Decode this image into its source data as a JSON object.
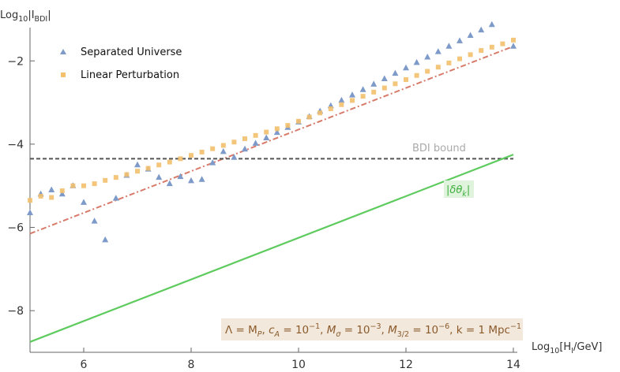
{
  "chart_data": {
    "type": "scatter",
    "xlabel": "Log10[HI/GeV]",
    "ylabel": "Log10|IBDI|",
    "xlim": [
      5,
      14
    ],
    "ylim": [
      -9,
      -1.2
    ],
    "x_ticks": [
      "6",
      "8",
      "10",
      "12",
      "14"
    ],
    "y_ticks": [
      "-2",
      "-4",
      "-6",
      "-8"
    ],
    "grid": false,
    "legend_position": "top-left",
    "series": [
      {
        "name": "Separated Universe",
        "marker": "triangle",
        "color": "#7d9ac9",
        "points": [
          [
            5.0,
            -5.65
          ],
          [
            5.2,
            -5.2
          ],
          [
            5.4,
            -5.1
          ],
          [
            5.6,
            -5.2
          ],
          [
            5.8,
            -5.0
          ],
          [
            6.0,
            -5.4
          ],
          [
            6.2,
            -5.85
          ],
          [
            6.4,
            -6.3
          ],
          [
            6.6,
            -5.3
          ],
          [
            6.8,
            -4.75
          ],
          [
            7.0,
            -4.5
          ],
          [
            7.2,
            -4.6
          ],
          [
            7.4,
            -4.8
          ],
          [
            7.6,
            -4.95
          ],
          [
            7.8,
            -4.78
          ],
          [
            8.0,
            -4.88
          ],
          [
            8.2,
            -4.85
          ],
          [
            8.4,
            -4.45
          ],
          [
            8.6,
            -4.18
          ],
          [
            8.8,
            -4.32
          ],
          [
            9.0,
            -4.12
          ],
          [
            9.2,
            -3.98
          ],
          [
            9.4,
            -3.85
          ],
          [
            9.6,
            -3.72
          ],
          [
            9.8,
            -3.6
          ],
          [
            10.0,
            -3.47
          ],
          [
            10.2,
            -3.34
          ],
          [
            10.4,
            -3.21
          ],
          [
            10.6,
            -3.08
          ],
          [
            10.8,
            -2.95
          ],
          [
            11.0,
            -2.82
          ],
          [
            11.2,
            -2.69
          ],
          [
            11.4,
            -2.56
          ],
          [
            11.6,
            -2.43
          ],
          [
            11.8,
            -2.3
          ],
          [
            12.0,
            -2.17
          ],
          [
            12.2,
            -2.04
          ],
          [
            12.4,
            -1.91
          ],
          [
            12.6,
            -1.78
          ],
          [
            12.8,
            -1.65
          ],
          [
            13.0,
            -1.52
          ],
          [
            13.2,
            -1.39
          ],
          [
            13.4,
            -1.26
          ],
          [
            13.6,
            -1.13
          ],
          [
            13.8,
            -1.0
          ],
          [
            14.0,
            -1.65
          ]
        ]
      },
      {
        "name": "Linear Perturbation",
        "marker": "square",
        "color": "#f3c06e",
        "points": [
          [
            5.0,
            -5.35
          ],
          [
            5.2,
            -5.25
          ],
          [
            5.4,
            -5.28
          ],
          [
            5.6,
            -5.12
          ],
          [
            5.8,
            -5.0
          ],
          [
            6.0,
            -5.0
          ],
          [
            6.2,
            -4.95
          ],
          [
            6.4,
            -4.87
          ],
          [
            6.6,
            -4.8
          ],
          [
            6.8,
            -4.73
          ],
          [
            7.0,
            -4.65
          ],
          [
            7.2,
            -4.58
          ],
          [
            7.4,
            -4.5
          ],
          [
            7.6,
            -4.43
          ],
          [
            7.8,
            -4.35
          ],
          [
            8.0,
            -4.27
          ],
          [
            8.2,
            -4.19
          ],
          [
            8.4,
            -4.11
          ],
          [
            8.6,
            -4.03
          ],
          [
            8.8,
            -3.95
          ],
          [
            9.0,
            -3.87
          ],
          [
            9.2,
            -3.79
          ],
          [
            9.4,
            -3.71
          ],
          [
            9.6,
            -3.63
          ],
          [
            9.8,
            -3.55
          ],
          [
            10.0,
            -3.45
          ],
          [
            10.2,
            -3.35
          ],
          [
            10.4,
            -3.25
          ],
          [
            10.6,
            -3.15
          ],
          [
            10.8,
            -3.05
          ],
          [
            11.0,
            -2.95
          ],
          [
            11.2,
            -2.85
          ],
          [
            11.4,
            -2.75
          ],
          [
            11.6,
            -2.65
          ],
          [
            11.8,
            -2.55
          ],
          [
            12.0,
            -2.45
          ],
          [
            12.2,
            -2.35
          ],
          [
            12.4,
            -2.25
          ],
          [
            12.6,
            -2.15
          ],
          [
            12.8,
            -2.05
          ],
          [
            13.0,
            -1.95
          ],
          [
            13.2,
            -1.85
          ],
          [
            13.4,
            -1.75
          ],
          [
            13.6,
            -1.67
          ],
          [
            13.8,
            -1.59
          ],
          [
            14.0,
            -1.5
          ]
        ]
      }
    ],
    "lines": [
      {
        "style": "dash-dot",
        "color": "#d87a6a",
        "points": [
          [
            5.0,
            -6.15
          ],
          [
            14.0,
            -1.65
          ]
        ]
      },
      {
        "style": "dashed",
        "color": "#555555",
        "points": [
          [
            5.0,
            -4.35
          ],
          [
            14.0,
            -4.35
          ]
        ]
      },
      {
        "name": "|δθk|",
        "style": "solid",
        "color": "#5ecb5e",
        "points": [
          [
            5.0,
            -8.75
          ],
          [
            14.0,
            -4.25
          ]
        ]
      }
    ],
    "annotations": {
      "bdi_label": "BDI bound",
      "delta_label": "|δθk|",
      "params": "Λ = MP, cA = 10−1, Mσ = 10−3, M3/2 = 10−6, k = 1 Mpc−1"
    }
  }
}
